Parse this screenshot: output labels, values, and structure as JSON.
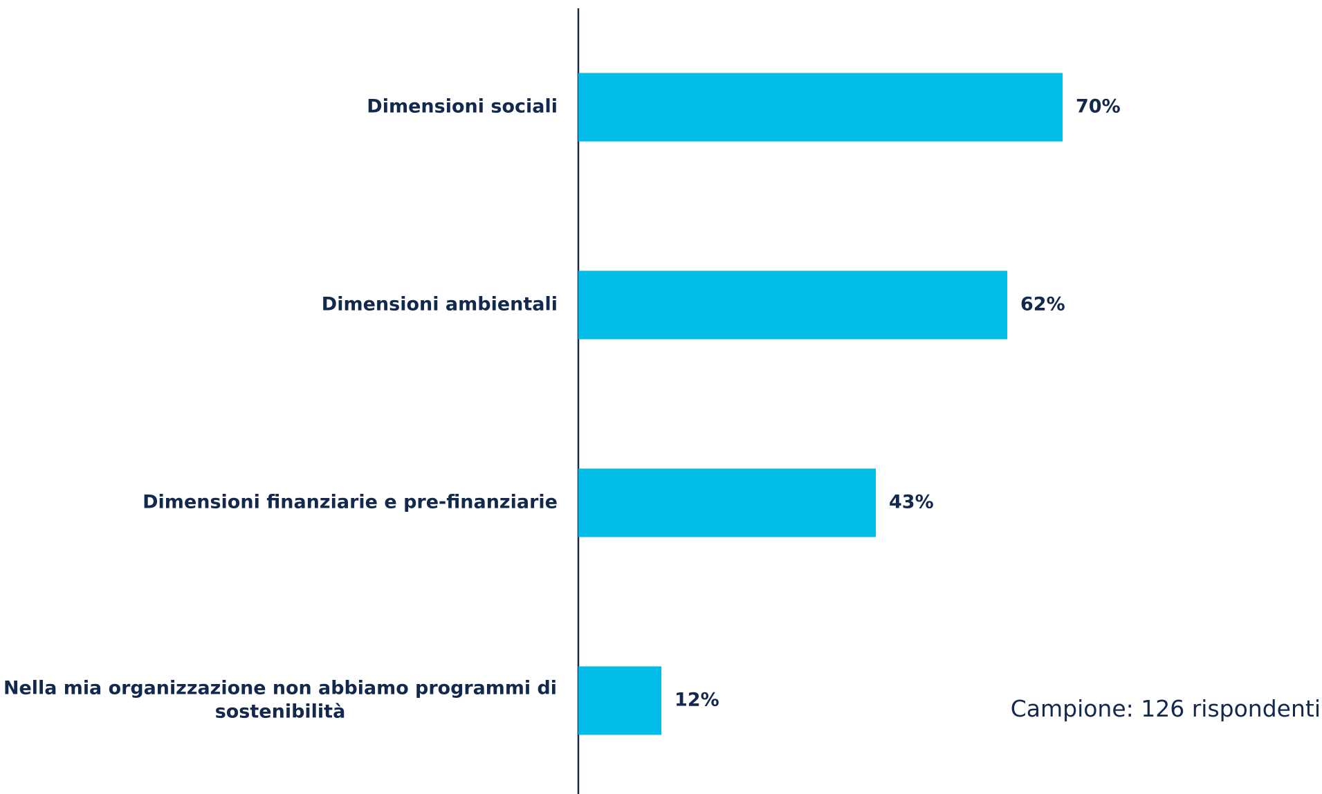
{
  "chart_data": {
    "type": "bar",
    "orientation": "horizontal",
    "categories": [
      [
        "Dimensioni sociali"
      ],
      [
        "Dimensioni ambientali"
      ],
      [
        "Dimensioni finanziarie e pre-finanziarie"
      ],
      [
        "Nella mia organizzazione non abbiamo programmi di",
        "sostenibilità"
      ]
    ],
    "values": [
      70,
      62,
      43,
      12
    ],
    "value_labels": [
      "70%",
      "62%",
      "43%",
      "12%"
    ],
    "xlim": [
      0,
      100
    ],
    "grid": false,
    "bar_color": "#00bce6",
    "axis_color": "#12294d",
    "text_color": "#12294d"
  },
  "note": "Campione: 126 rispondenti"
}
